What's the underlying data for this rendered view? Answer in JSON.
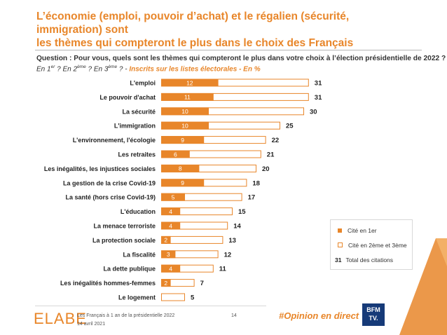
{
  "header": {
    "title_line1": "L’économie (emploi, pouvoir d’achat) et le régalien (sécurité, immigration) sont",
    "title_line2": "les thèmes qui compteront le plus dans le choix des Français"
  },
  "question": {
    "text": "Question : Pour vous, quels sont les thèmes qui compteront le plus dans votre choix à l’élection présidentielle de 2022 ?",
    "sub_part1": "En 1",
    "sup1": "er",
    "sub_part2": " ? En 2",
    "sup2": "ème",
    "sub_part3": " ? En 3",
    "sup3": "ème",
    "sub_part4": " ? - ",
    "sub_accent": "Inscrits sur les listes électorales  - En %"
  },
  "legend": {
    "first": "Cité en 1er",
    "second": "Cité en 2ème et 3ème",
    "total_num": "31",
    "total_label": "Total des citations"
  },
  "footer": {
    "logo": "ELABE",
    "line1": "Les Français à 1 an de la présidentielle 2022",
    "line2": "14 avril 2021",
    "page": "14",
    "hashtag": "#Opinion en direct",
    "bfm_line1": "BFM",
    "bfm_line2": "TV."
  },
  "colors": {
    "accent": "#e8862a",
    "text": "#1f1f1f"
  },
  "chart_data": {
    "type": "bar",
    "orientation": "horizontal",
    "stacked": true,
    "categories": [
      "L'emploi",
      "Le pouvoir d'achat",
      "La sécurité",
      "L'immigration",
      "L'environnement, l'écologie",
      "Les retraites",
      "Les inégalités, les injustices sociales",
      "La gestion de la crise Covid-19",
      "La santé (hors crise Covid-19)",
      "L'éducation",
      "La menace terroriste",
      "La protection sociale",
      "La fiscalité",
      "La dette publique",
      "Les inégalités hommes-femmes",
      "Le logement"
    ],
    "series": [
      {
        "name": "Cité en 1er",
        "values": [
          12,
          11,
          10,
          10,
          9,
          6,
          8,
          9,
          5,
          4,
          4,
          2,
          3,
          4,
          2,
          null
        ]
      },
      {
        "name": "Cité en 2ème et 3ème",
        "values": [
          19,
          20,
          20,
          15,
          13,
          15,
          12,
          9,
          12,
          11,
          10,
          11,
          9,
          7,
          5,
          5
        ]
      }
    ],
    "totals": [
      31,
      31,
      30,
      25,
      22,
      21,
      20,
      18,
      17,
      15,
      14,
      13,
      12,
      11,
      7,
      5
    ],
    "xlim": [
      0,
      31
    ]
  }
}
